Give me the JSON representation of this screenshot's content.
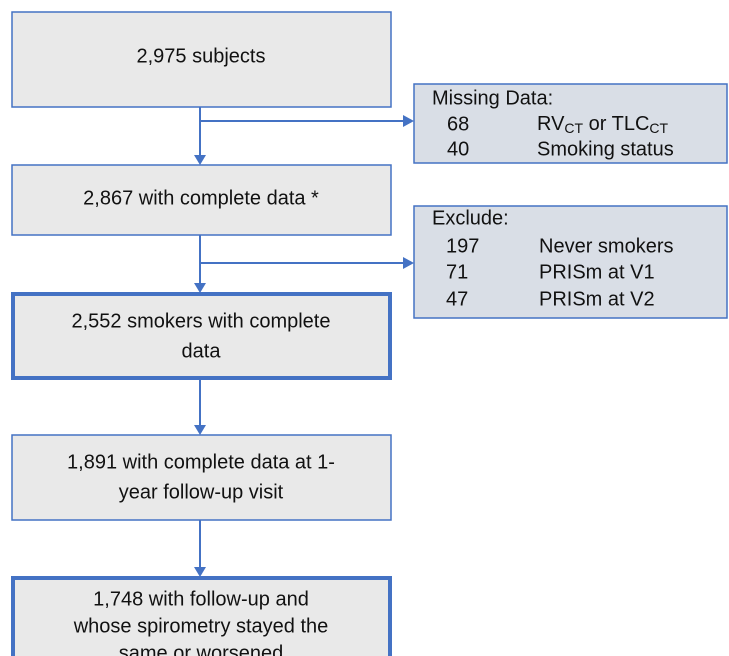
{
  "boxes": [
    {
      "lines": [
        "2,975 subjects"
      ]
    },
    {
      "lines": [
        "2,867 with complete data *"
      ]
    },
    {
      "lines": [
        "2,552 smokers with complete",
        "data"
      ]
    },
    {
      "lines": [
        "1,891 with complete data at 1-",
        "year follow-up visit"
      ]
    },
    {
      "lines": [
        "1,748 with follow-up and",
        "whose spirometry stayed the",
        "same or worsened"
      ]
    }
  ],
  "side_boxes": [
    {
      "title": "Missing Data:",
      "items": [
        {
          "count": "68",
          "label": [
            "RV",
            "CT",
            " or TLC",
            "CT"
          ]
        },
        {
          "count": "40",
          "label": [
            "Smoking status"
          ]
        }
      ]
    },
    {
      "title": "Exclude:",
      "items": [
        {
          "count": "197",
          "label": [
            "Never smokers"
          ]
        },
        {
          "count": "71",
          "label": [
            "PRISm at V1"
          ]
        },
        {
          "count": "47",
          "label": [
            "PRISm at V2"
          ]
        }
      ]
    }
  ]
}
